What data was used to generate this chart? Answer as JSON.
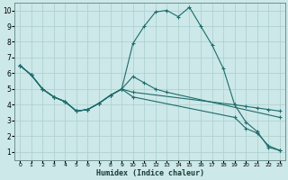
{
  "xlabel": "Humidex (Indice chaleur)",
  "bg_color": "#cce8e8",
  "grid_color": "#aacece",
  "line_color": "#1e6b6b",
  "xlim": [
    -0.5,
    23.5
  ],
  "ylim": [
    0.5,
    10.5
  ],
  "yticks": [
    1,
    2,
    3,
    4,
    5,
    6,
    7,
    8,
    9,
    10
  ],
  "xticks": [
    0,
    1,
    2,
    3,
    4,
    5,
    6,
    7,
    8,
    9,
    10,
    11,
    12,
    13,
    14,
    15,
    16,
    17,
    18,
    19,
    20,
    21,
    22,
    23
  ],
  "line1_x": [
    0,
    1,
    2,
    3,
    4,
    5,
    6,
    7,
    8,
    9,
    10,
    11,
    12,
    13,
    14,
    15,
    16,
    17,
    18,
    19,
    20,
    21,
    22,
    23
  ],
  "line1_y": [
    6.5,
    5.9,
    5.0,
    4.5,
    4.2,
    3.6,
    3.7,
    4.1,
    4.6,
    5.0,
    7.9,
    9.0,
    9.9,
    10.0,
    9.6,
    10.2,
    9.0,
    7.8,
    6.3,
    4.0,
    2.9,
    2.3,
    1.3,
    1.1
  ],
  "line2_x": [
    0,
    1,
    2,
    3,
    4,
    5,
    6,
    7,
    8,
    9,
    10,
    11,
    12,
    13,
    23
  ],
  "line2_y": [
    6.5,
    5.9,
    5.0,
    4.5,
    4.2,
    3.6,
    3.7,
    4.1,
    4.6,
    5.0,
    5.8,
    5.4,
    5.0,
    4.8,
    3.2
  ],
  "line3_x": [
    0,
    1,
    2,
    3,
    4,
    5,
    6,
    7,
    8,
    9,
    10,
    19,
    20,
    21,
    22,
    23
  ],
  "line3_y": [
    6.5,
    5.9,
    5.0,
    4.5,
    4.2,
    3.6,
    3.7,
    4.1,
    4.6,
    5.0,
    4.8,
    4.0,
    3.9,
    3.8,
    3.7,
    3.6
  ],
  "line4_x": [
    0,
    1,
    2,
    3,
    4,
    5,
    6,
    7,
    8,
    9,
    10,
    19,
    20,
    21,
    22,
    23
  ],
  "line4_y": [
    6.5,
    5.9,
    5.0,
    4.5,
    4.2,
    3.6,
    3.7,
    4.1,
    4.6,
    5.0,
    4.5,
    3.2,
    2.5,
    2.2,
    1.4,
    1.1
  ]
}
